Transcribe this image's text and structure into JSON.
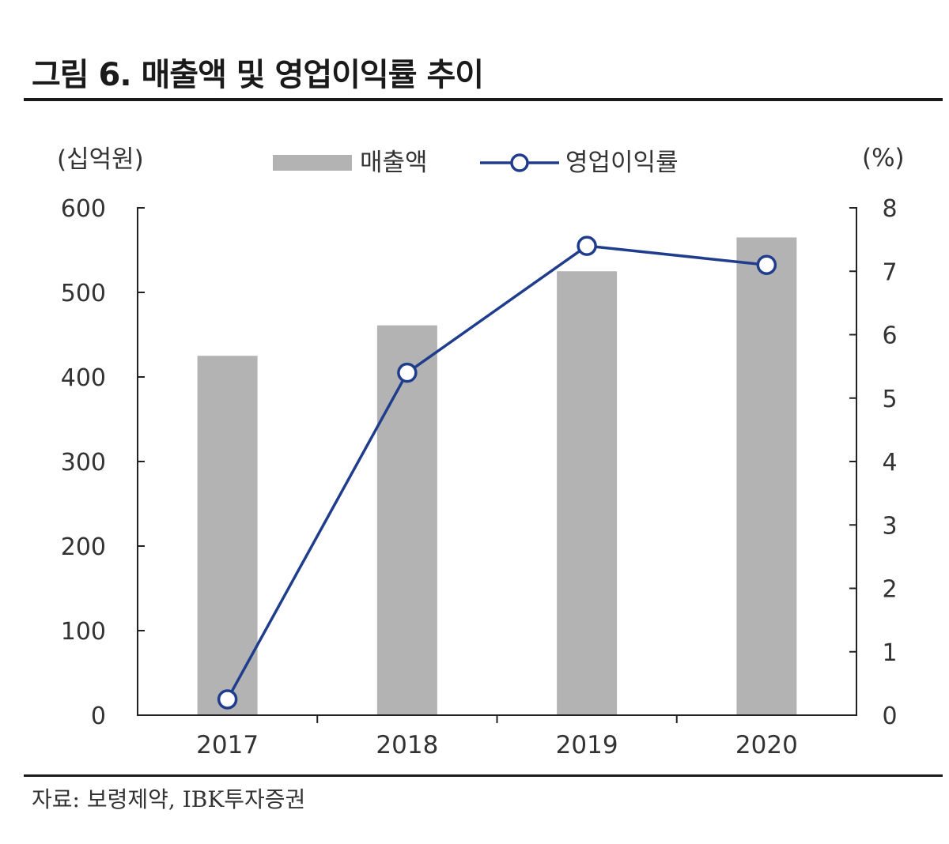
{
  "figure": {
    "title": "그림 6. 매출액 및 영업이익률 추이",
    "source": "자료: 보령제약, IBK투자증권"
  },
  "chart_data": {
    "type": "bar",
    "title": "그림 6. 매출액 및 영업이익률 추이",
    "categories": [
      "2017",
      "2018",
      "2019",
      "2020"
    ],
    "series": [
      {
        "name": "매출액",
        "type": "bar",
        "axis": "left",
        "color": "#b3b3b3",
        "values": [
          425,
          461,
          525,
          565
        ]
      },
      {
        "name": "영업이익률",
        "type": "line",
        "axis": "right",
        "color": "#1f3d8c",
        "marker": "open-circle",
        "values": [
          0.25,
          5.4,
          7.4,
          7.1
        ]
      }
    ],
    "y_left": {
      "label": "(십억원)",
      "range": [
        0,
        600
      ],
      "ticks": [
        0,
        100,
        200,
        300,
        400,
        500,
        600
      ]
    },
    "y_right": {
      "label": "(%)",
      "range": [
        0,
        8
      ],
      "ticks": [
        0,
        1,
        2,
        3,
        4,
        5,
        6,
        7,
        8
      ]
    },
    "legend": {
      "position": "top-center"
    },
    "grid": false
  }
}
